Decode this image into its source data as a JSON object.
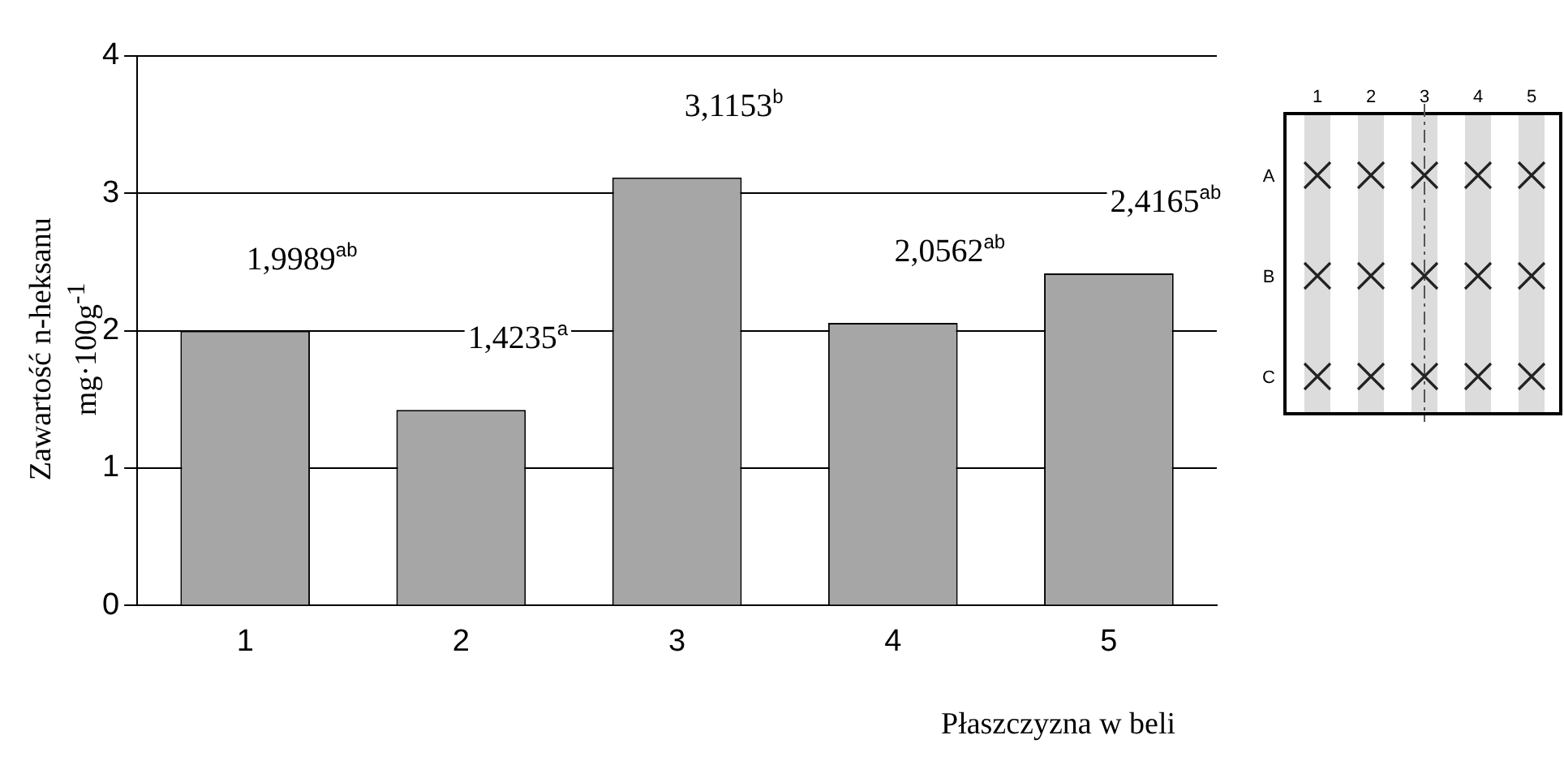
{
  "chart_data": {
    "type": "bar",
    "categories": [
      "1",
      "2",
      "3",
      "4",
      "5"
    ],
    "values": [
      1.9989,
      1.4235,
      3.1153,
      2.0562,
      2.4165
    ],
    "value_labels": [
      "1,9989$^{ab}$",
      "1,4235$^{a}$",
      "3,1153$^{b}$",
      "2,0562$^{ab}$",
      "2,4165$^{ab}$"
    ],
    "color": "#a6a6a6",
    "ylim": [
      0,
      4
    ],
    "yticks": [
      0,
      1,
      2,
      3,
      4
    ],
    "grid": "y",
    "legend": false,
    "xlabel": "Płaszczyzna w beli",
    "ylabel": "Zawartość n-heksanu mg·100g$^{-1}$",
    "annotations": [
      "1",
      "2",
      "3",
      "4",
      "5",
      "A",
      "B",
      "C"
    ]
  }
}
